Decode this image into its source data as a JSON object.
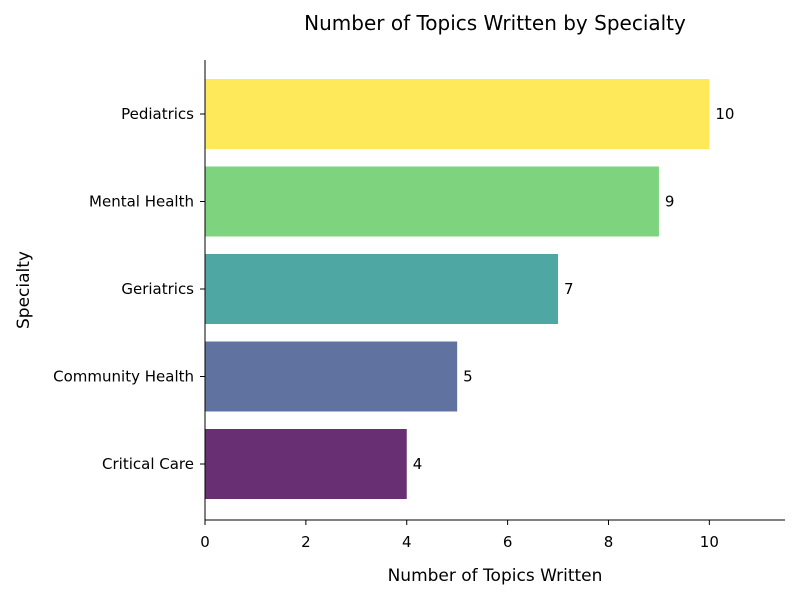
{
  "chart_data": {
    "type": "bar",
    "orientation": "horizontal",
    "title": "Number of Topics Written by Specialty",
    "xlabel": "Number of Topics Written",
    "ylabel": "Specialty",
    "categories": [
      "Critical Care",
      "Community Health",
      "Geriatrics",
      "Mental Health",
      "Pediatrics"
    ],
    "values": [
      4,
      5,
      7,
      9,
      10
    ],
    "colors": [
      "#682f73",
      "#6073a0",
      "#4ea7a3",
      "#7ed37f",
      "#fee95a"
    ],
    "xlim": [
      0,
      11.5
    ],
    "xticks": [
      0,
      2,
      4,
      6,
      8,
      10
    ],
    "grid": false,
    "data_labels": true
  }
}
